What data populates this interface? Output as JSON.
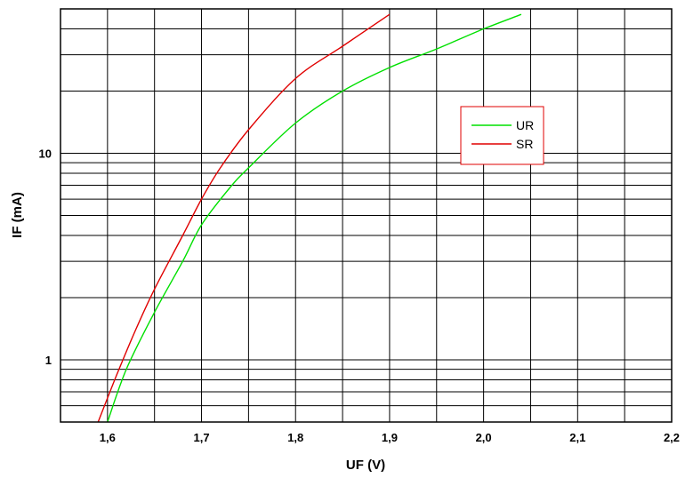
{
  "chart_data": {
    "type": "line",
    "xlabel": "UF (V)",
    "ylabel": "IF (mA)",
    "xlim": [
      1.55,
      2.2
    ],
    "ylim": [
      0.5,
      50
    ],
    "yscale": "log",
    "grid": true,
    "x_ticks": [
      {
        "value": 1.6,
        "label": "1,6"
      },
      {
        "value": 1.7,
        "label": "1,7"
      },
      {
        "value": 1.8,
        "label": "1,8"
      },
      {
        "value": 1.9,
        "label": "1,9"
      },
      {
        "value": 2.0,
        "label": "2,0"
      },
      {
        "value": 2.1,
        "label": "2,1"
      },
      {
        "value": 2.2,
        "label": "2,2"
      }
    ],
    "y_ticks": [
      {
        "value": 1,
        "label": "1"
      },
      {
        "value": 10,
        "label": "10"
      }
    ],
    "x_grid_values": [
      1.55,
      1.6,
      1.65,
      1.7,
      1.75,
      1.8,
      1.85,
      1.9,
      1.95,
      2.0,
      2.05,
      2.1,
      2.15,
      2.2
    ],
    "y_grid_values": [
      0.6,
      0.7,
      0.8,
      0.9,
      1,
      2,
      3,
      4,
      5,
      6,
      7,
      8,
      9,
      10,
      20,
      30,
      40
    ],
    "legend_position": "right",
    "series": [
      {
        "name": "UR",
        "color": "#00e000",
        "points": [
          [
            1.6,
            0.5
          ],
          [
            1.62,
            0.9
          ],
          [
            1.65,
            1.7
          ],
          [
            1.68,
            3.0
          ],
          [
            1.7,
            4.5
          ],
          [
            1.73,
            6.8
          ],
          [
            1.75,
            8.5
          ],
          [
            1.8,
            14.0
          ],
          [
            1.85,
            20.0
          ],
          [
            1.9,
            26.0
          ],
          [
            1.95,
            32.0
          ],
          [
            2.0,
            40.0
          ],
          [
            2.04,
            47.0
          ]
        ]
      },
      {
        "name": "SR",
        "color": "#e00000",
        "points": [
          [
            1.59,
            0.5
          ],
          [
            1.61,
            0.85
          ],
          [
            1.63,
            1.4
          ],
          [
            1.65,
            2.2
          ],
          [
            1.68,
            4.0
          ],
          [
            1.7,
            6.0
          ],
          [
            1.72,
            8.5
          ],
          [
            1.75,
            13.0
          ],
          [
            1.8,
            23.0
          ],
          [
            1.85,
            33.0
          ],
          [
            1.9,
            47.0
          ]
        ]
      }
    ]
  }
}
